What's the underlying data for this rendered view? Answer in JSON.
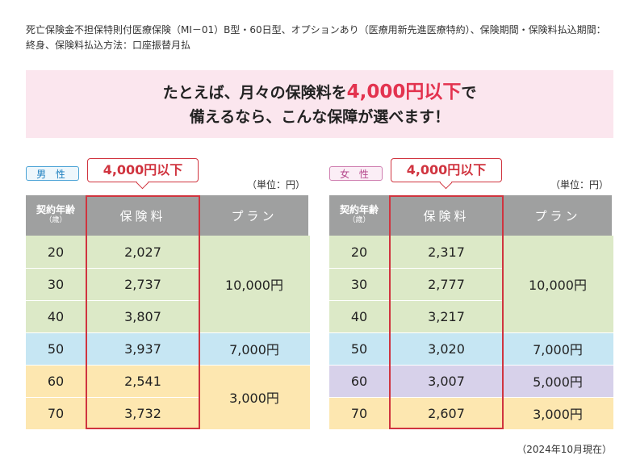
{
  "note": "死亡保険金不担保特則付医療保険（MI－01）B型・60日型、オプションあり（医療用新先進医療特約）、保険期間・保険料払込期間：終身、保険料払込方法：口座振替月払",
  "banner": {
    "line1_pre": "たとえば、月々の保険料を",
    "line1_highlight": "4,000円以下",
    "line1_post": "で",
    "line2": "備えるなら、こんな保障が選べます！"
  },
  "unit": "（単位：円）",
  "callout": "4,000円以下",
  "headers": {
    "age": "契約年齢",
    "age_sub": "（歳）",
    "premium": "保険料",
    "plan": "プラン"
  },
  "colors": {
    "green": "#dce9c7",
    "blue": "#c6e6f3",
    "yellow": "#fde7b0",
    "purple": "#d7d1ea",
    "header": "#9fa0a0",
    "accent_red": "#d0343f"
  },
  "male": {
    "label": "男 性",
    "rows": [
      {
        "age": "20",
        "premium": "2,027",
        "band": "green"
      },
      {
        "age": "30",
        "premium": "2,737",
        "band": "green"
      },
      {
        "age": "40",
        "premium": "3,807",
        "band": "green"
      },
      {
        "age": "50",
        "premium": "3,937",
        "band": "blue"
      },
      {
        "age": "60",
        "premium": "2,541",
        "band": "yellow"
      },
      {
        "age": "70",
        "premium": "3,732",
        "band": "yellow"
      }
    ],
    "plans": [
      {
        "label": "10,000円",
        "start": 0,
        "span": 3,
        "band": "green"
      },
      {
        "label": "7,000円",
        "start": 3,
        "span": 1,
        "band": "blue"
      },
      {
        "label": "3,000円",
        "start": 4,
        "span": 2,
        "band": "yellow"
      }
    ]
  },
  "female": {
    "label": "女 性",
    "rows": [
      {
        "age": "20",
        "premium": "2,317",
        "band": "green"
      },
      {
        "age": "30",
        "premium": "2,777",
        "band": "green"
      },
      {
        "age": "40",
        "premium": "3,217",
        "band": "green"
      },
      {
        "age": "50",
        "premium": "3,020",
        "band": "blue"
      },
      {
        "age": "60",
        "premium": "3,007",
        "band": "purple"
      },
      {
        "age": "70",
        "premium": "2,607",
        "band": "yellow"
      }
    ],
    "plans": [
      {
        "label": "10,000円",
        "start": 0,
        "span": 3,
        "band": "green"
      },
      {
        "label": "7,000円",
        "start": 3,
        "span": 1,
        "band": "blue"
      },
      {
        "label": "5,000円",
        "start": 4,
        "span": 1,
        "band": "purple"
      },
      {
        "label": "3,000円",
        "start": 5,
        "span": 1,
        "band": "yellow"
      }
    ]
  },
  "footnote": "（2024年10月現在）"
}
